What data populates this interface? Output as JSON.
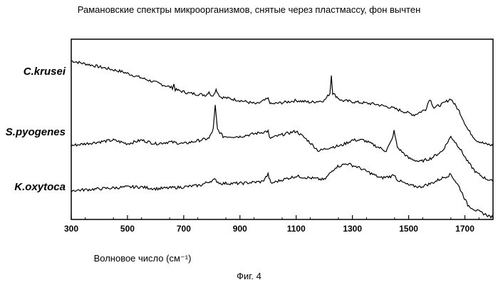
{
  "chart_data": {
    "type": "line",
    "title": "Рамановские спектры микроорганизмов, снятые через пластмассу, фон вычтен",
    "xlabel": "Волновое число (см⁻¹)",
    "ylabel": "",
    "xlim": [
      300,
      1800
    ],
    "ylim": [
      0,
      100
    ],
    "grid": false,
    "x_ticks": [
      {
        "value": 300,
        "label": "300"
      },
      {
        "value": 500,
        "label": "500"
      },
      {
        "value": 700,
        "label": "700"
      },
      {
        "value": 900,
        "label": "900"
      },
      {
        "value": 1100,
        "label": "1100"
      },
      {
        "value": 1300,
        "label": "1300"
      },
      {
        "value": 1500,
        "label": "1500"
      },
      {
        "value": 1700,
        "label": "1700"
      }
    ],
    "series": [
      {
        "name": "C.krusei",
        "points": [
          [
            300,
            88
          ],
          [
            360,
            86
          ],
          [
            420,
            84
          ],
          [
            480,
            82
          ],
          [
            540,
            79
          ],
          [
            600,
            76
          ],
          [
            660,
            73
          ],
          [
            665,
            75
          ],
          [
            670,
            72
          ],
          [
            720,
            70
          ],
          [
            780,
            69
          ],
          [
            790,
            71
          ],
          [
            800,
            68
          ],
          [
            815,
            72
          ],
          [
            830,
            68
          ],
          [
            900,
            66
          ],
          [
            960,
            64
          ],
          [
            1000,
            67
          ],
          [
            1010,
            64
          ],
          [
            1060,
            65
          ],
          [
            1100,
            66
          ],
          [
            1150,
            65
          ],
          [
            1200,
            66
          ],
          [
            1220,
            70
          ],
          [
            1225,
            80
          ],
          [
            1230,
            70
          ],
          [
            1260,
            66
          ],
          [
            1320,
            65
          ],
          [
            1380,
            64
          ],
          [
            1440,
            62
          ],
          [
            1480,
            60
          ],
          [
            1520,
            58
          ],
          [
            1560,
            61
          ],
          [
            1575,
            67
          ],
          [
            1590,
            62
          ],
          [
            1620,
            64
          ],
          [
            1650,
            67
          ],
          [
            1680,
            60
          ],
          [
            1710,
            50
          ],
          [
            1740,
            44
          ],
          [
            1770,
            42
          ],
          [
            1800,
            41
          ]
        ]
      },
      {
        "name": "S.pyogenes",
        "points": [
          [
            300,
            41
          ],
          [
            350,
            42
          ],
          [
            400,
            43
          ],
          [
            450,
            44
          ],
          [
            500,
            42
          ],
          [
            550,
            44
          ],
          [
            600,
            42
          ],
          [
            650,
            43
          ],
          [
            700,
            42
          ],
          [
            760,
            44
          ],
          [
            790,
            45
          ],
          [
            805,
            50
          ],
          [
            812,
            63
          ],
          [
            820,
            50
          ],
          [
            840,
            46
          ],
          [
            900,
            46
          ],
          [
            1000,
            49
          ],
          [
            1005,
            45
          ],
          [
            1050,
            47
          ],
          [
            1100,
            49
          ],
          [
            1140,
            44
          ],
          [
            1180,
            38
          ],
          [
            1220,
            40
          ],
          [
            1260,
            41
          ],
          [
            1300,
            44
          ],
          [
            1340,
            44
          ],
          [
            1380,
            41
          ],
          [
            1420,
            38
          ],
          [
            1440,
            44
          ],
          [
            1448,
            49
          ],
          [
            1460,
            40
          ],
          [
            1500,
            34
          ],
          [
            1540,
            32
          ],
          [
            1580,
            34
          ],
          [
            1620,
            38
          ],
          [
            1650,
            46
          ],
          [
            1680,
            40
          ],
          [
            1710,
            32
          ],
          [
            1740,
            26
          ],
          [
            1770,
            23
          ],
          [
            1800,
            21
          ]
        ]
      },
      {
        "name": "K.oxytoca",
        "points": [
          [
            300,
            16
          ],
          [
            400,
            17
          ],
          [
            500,
            18
          ],
          [
            550,
            18
          ],
          [
            600,
            17
          ],
          [
            700,
            18
          ],
          [
            760,
            19
          ],
          [
            790,
            21
          ],
          [
            810,
            22
          ],
          [
            830,
            20
          ],
          [
            900,
            20
          ],
          [
            980,
            21
          ],
          [
            1000,
            25
          ],
          [
            1010,
            20
          ],
          [
            1050,
            22
          ],
          [
            1100,
            24
          ],
          [
            1150,
            23
          ],
          [
            1200,
            22
          ],
          [
            1240,
            29
          ],
          [
            1280,
            31
          ],
          [
            1320,
            29
          ],
          [
            1360,
            26
          ],
          [
            1400,
            23
          ],
          [
            1440,
            24
          ],
          [
            1448,
            25
          ],
          [
            1460,
            22
          ],
          [
            1500,
            19
          ],
          [
            1540,
            18
          ],
          [
            1580,
            20
          ],
          [
            1620,
            23
          ],
          [
            1650,
            25
          ],
          [
            1680,
            18
          ],
          [
            1710,
            8
          ],
          [
            1740,
            5
          ],
          [
            1770,
            3
          ],
          [
            1800,
            1
          ]
        ]
      }
    ]
  },
  "caption": "Фиг. 4"
}
